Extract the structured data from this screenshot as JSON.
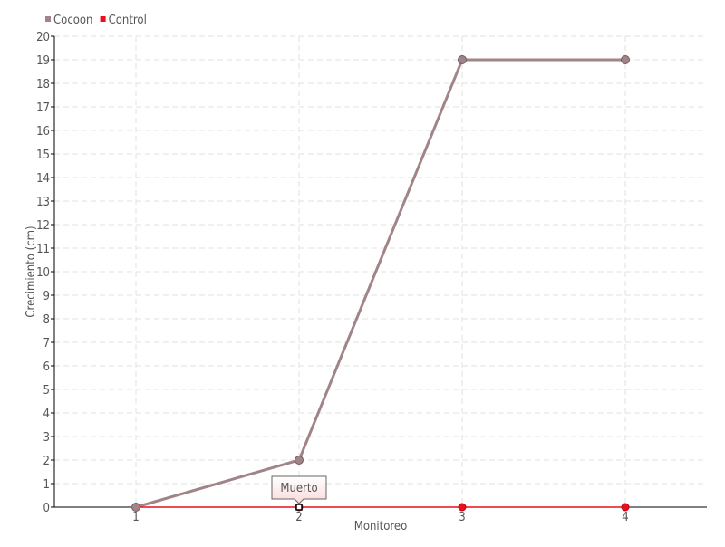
{
  "chart_data": {
    "type": "line",
    "title": "",
    "xlabel": "Monitoreo",
    "ylabel": "Crecimiento (cm)",
    "categories": [
      "1",
      "2",
      "3",
      "4"
    ],
    "ylim": [
      0,
      20
    ],
    "yticks": [
      "0",
      "1",
      "2",
      "3",
      "4",
      "5",
      "6",
      "7",
      "8",
      "9",
      "10",
      "11",
      "12",
      "13",
      "14",
      "15",
      "16",
      "17",
      "18",
      "19",
      "20"
    ],
    "grid": true,
    "legend_position": "top-left",
    "series": [
      {
        "name": "Cocoon",
        "values": [
          0,
          2,
          19,
          19
        ],
        "color": "#a08488"
      },
      {
        "name": "Control",
        "values": [
          0,
          0,
          0,
          0
        ],
        "color": "#e8101c"
      }
    ],
    "annotations": [
      {
        "text": "Muerto",
        "series": "Control",
        "category": "2"
      }
    ]
  }
}
